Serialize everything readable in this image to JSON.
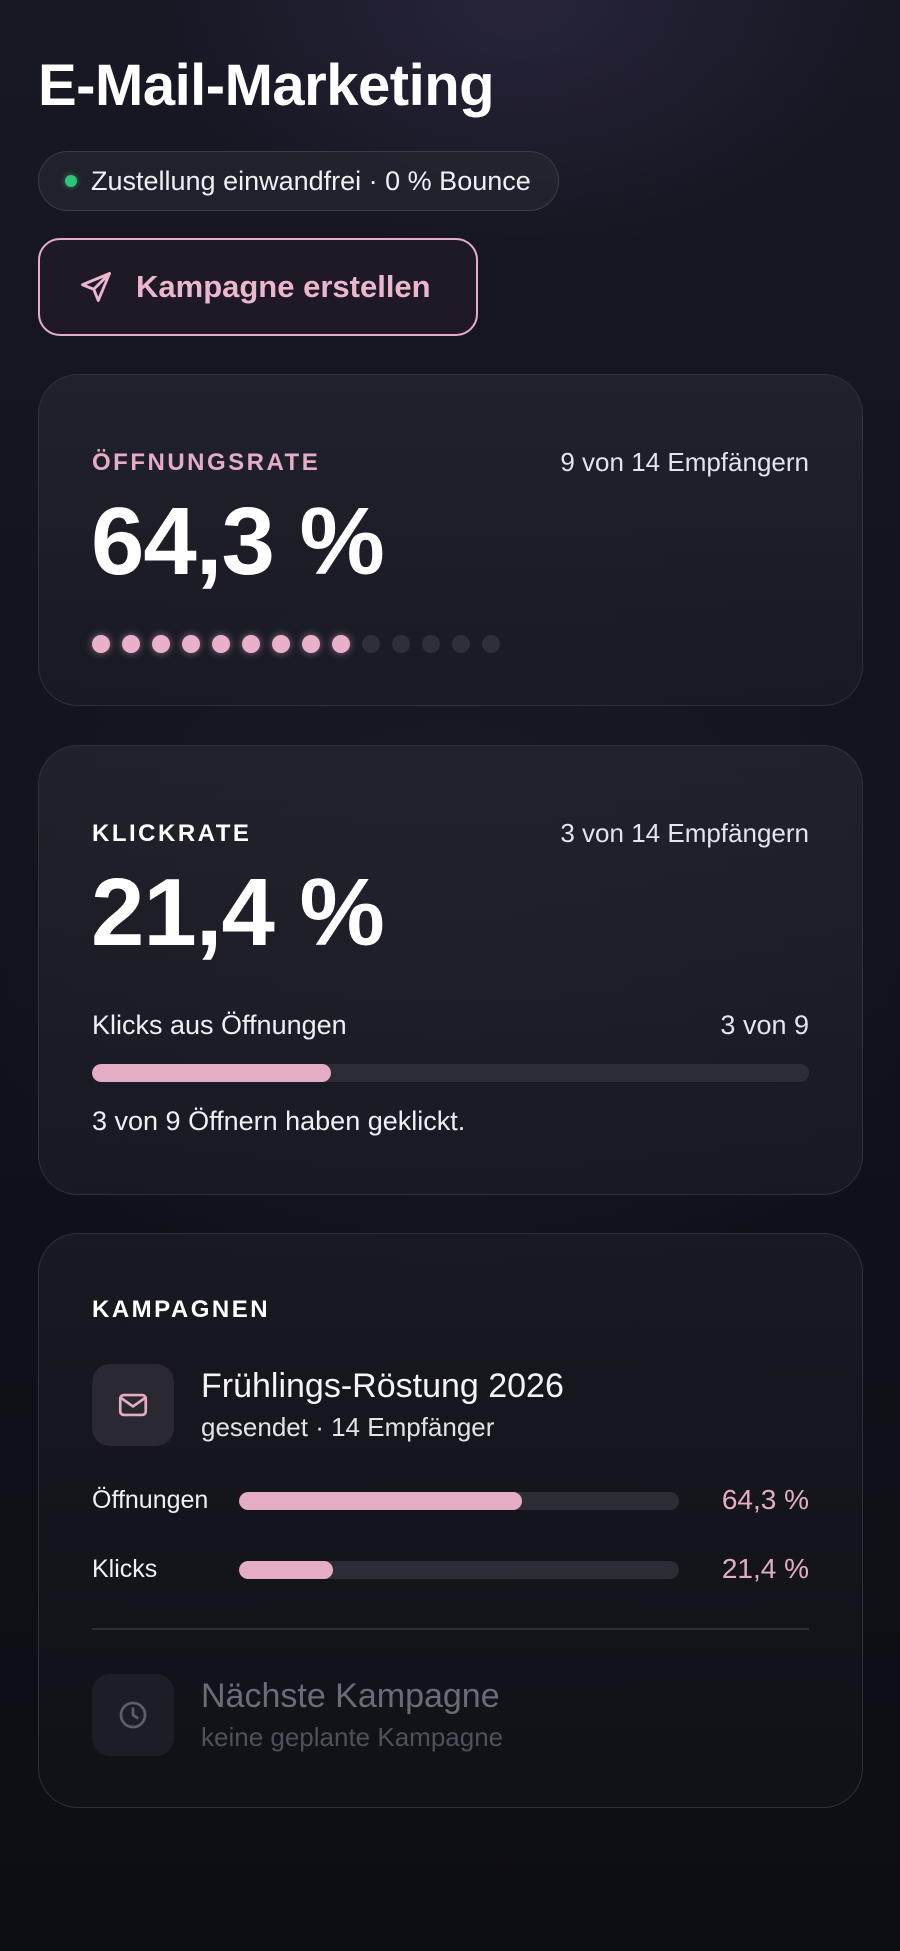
{
  "header": {
    "title": "E-Mail-Marketing",
    "status": "Zustellung einwandfrei · 0 % Bounce",
    "cta_label": "Kampagne erstellen"
  },
  "open_rate": {
    "label": "ÖFFNUNGSRATE",
    "meta": "9 von 14 Empfängern",
    "value": "64,3 %",
    "dots_filled": 9,
    "dots_total": 14
  },
  "click_rate": {
    "label": "KLICKRATE",
    "meta": "3 von 14 Empfängern",
    "value": "21,4 %",
    "bar_label": "Klicks aus Öffnungen",
    "bar_meta": "3 von 9",
    "bar_fraction": 0.333,
    "note": "3 von 9 Öffnern haben geklickt."
  },
  "campaigns": {
    "label": "KAMPAGNEN",
    "current": {
      "title": "Frühlings-Röstung 2026",
      "sub": "gesendet · 14 Empfänger",
      "icon": "mail-icon",
      "opens_label": "Öffnungen",
      "opens_value": "64,3 %",
      "opens_fraction": 0.643,
      "clicks_label": "Klicks",
      "clicks_value": "21,4 %",
      "clicks_fraction": 0.214
    },
    "next": {
      "title": "Nächste Kampagne",
      "sub": "keine geplante Kampagne",
      "icon": "clock-icon"
    }
  },
  "colors": {
    "accent": "#e4adc5",
    "status_ok": "#2fc47a"
  }
}
